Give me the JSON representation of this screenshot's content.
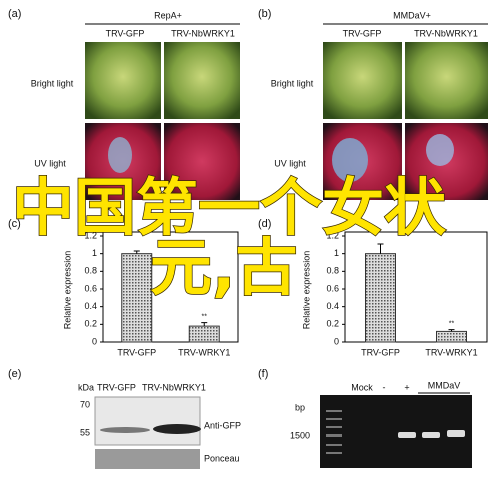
{
  "panels": {
    "a": {
      "label": "(a)",
      "title": "RepA+",
      "columns": [
        "TRV-GFP",
        "TRV-NbWRKY1"
      ],
      "rows": [
        "Bright light",
        "UV light"
      ]
    },
    "b": {
      "label": "(b)",
      "title": "MMDaV+",
      "columns": [
        "TRV-GFP",
        "TRV-NbWRKY1"
      ],
      "rows": [
        "Bright light",
        "UV light"
      ]
    },
    "c": {
      "label": "(c)",
      "chart_data": {
        "type": "bar",
        "y_label": "Relative expression",
        "categories": [
          "TRV-GFP",
          "TRV-WRKY1"
        ],
        "values": [
          1.0,
          0.18
        ],
        "errors": [
          0.03,
          0.04
        ],
        "annotation": "**",
        "ylim": [
          0,
          1.2
        ],
        "yticks": [
          0,
          0.2,
          0.4,
          0.6,
          0.8,
          1,
          1.2
        ]
      }
    },
    "d": {
      "label": "(d)",
      "chart_data": {
        "type": "bar",
        "y_label": "Relative expression",
        "categories": [
          "TRV-GFP",
          "TRV-WRKY1"
        ],
        "values": [
          1.0,
          0.12
        ],
        "errors": [
          0.11,
          0.02
        ],
        "annotation": "**",
        "ylim": [
          0,
          1.2
        ],
        "yticks": [
          0,
          0.2,
          0.4,
          0.6,
          0.8,
          1,
          1.2
        ]
      }
    },
    "e": {
      "label": "(e)",
      "unit": "kDa",
      "lanes": [
        "TRV-GFP",
        "TRV-NbWRKY1"
      ],
      "markers": [
        70,
        55
      ],
      "bands": [
        "Anti-GFP",
        "Ponceau"
      ]
    },
    "f": {
      "label": "(f)",
      "unit": "bp",
      "marker": "1500",
      "lanes": [
        "Mock",
        "-",
        "+"
      ],
      "group": "MMDaV"
    }
  },
  "watermark": [
    "中国第一个女状",
    "元,古"
  ]
}
